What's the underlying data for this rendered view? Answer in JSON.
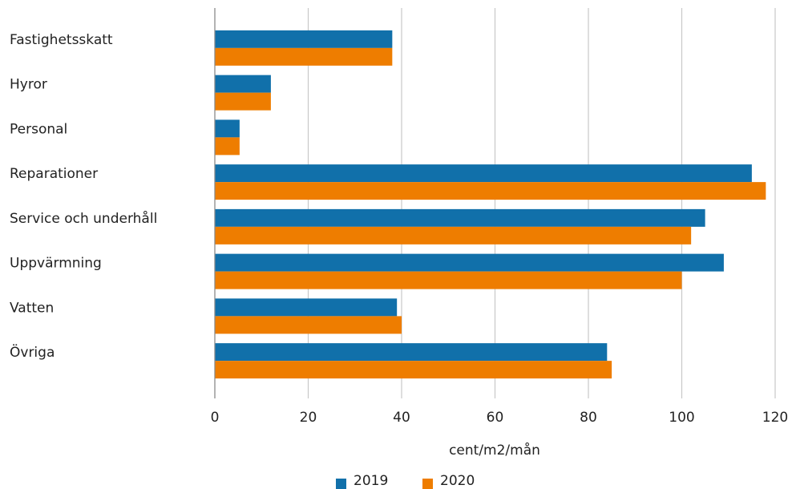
{
  "chart_data": {
    "type": "barh",
    "categories": [
      "Fastighetsskatt",
      "Hyror",
      "Personal",
      "Reparationer",
      "Service och underhåll",
      "Uppvärmning",
      "Vatten",
      "Övriga"
    ],
    "series": [
      {
        "name": "2019",
        "color": "#1170aa",
        "values": [
          38,
          12,
          5.3,
          115,
          105,
          109,
          39,
          84
        ]
      },
      {
        "name": "2020",
        "color": "#ee7d00",
        "values": [
          38,
          12,
          5.3,
          118,
          102,
          100,
          40,
          85
        ]
      }
    ],
    "x_label": "cent/m2/mån",
    "xlim": [
      0,
      120
    ],
    "xticks": [
      0,
      20,
      40,
      60,
      80,
      100,
      120
    ],
    "grid": true
  }
}
